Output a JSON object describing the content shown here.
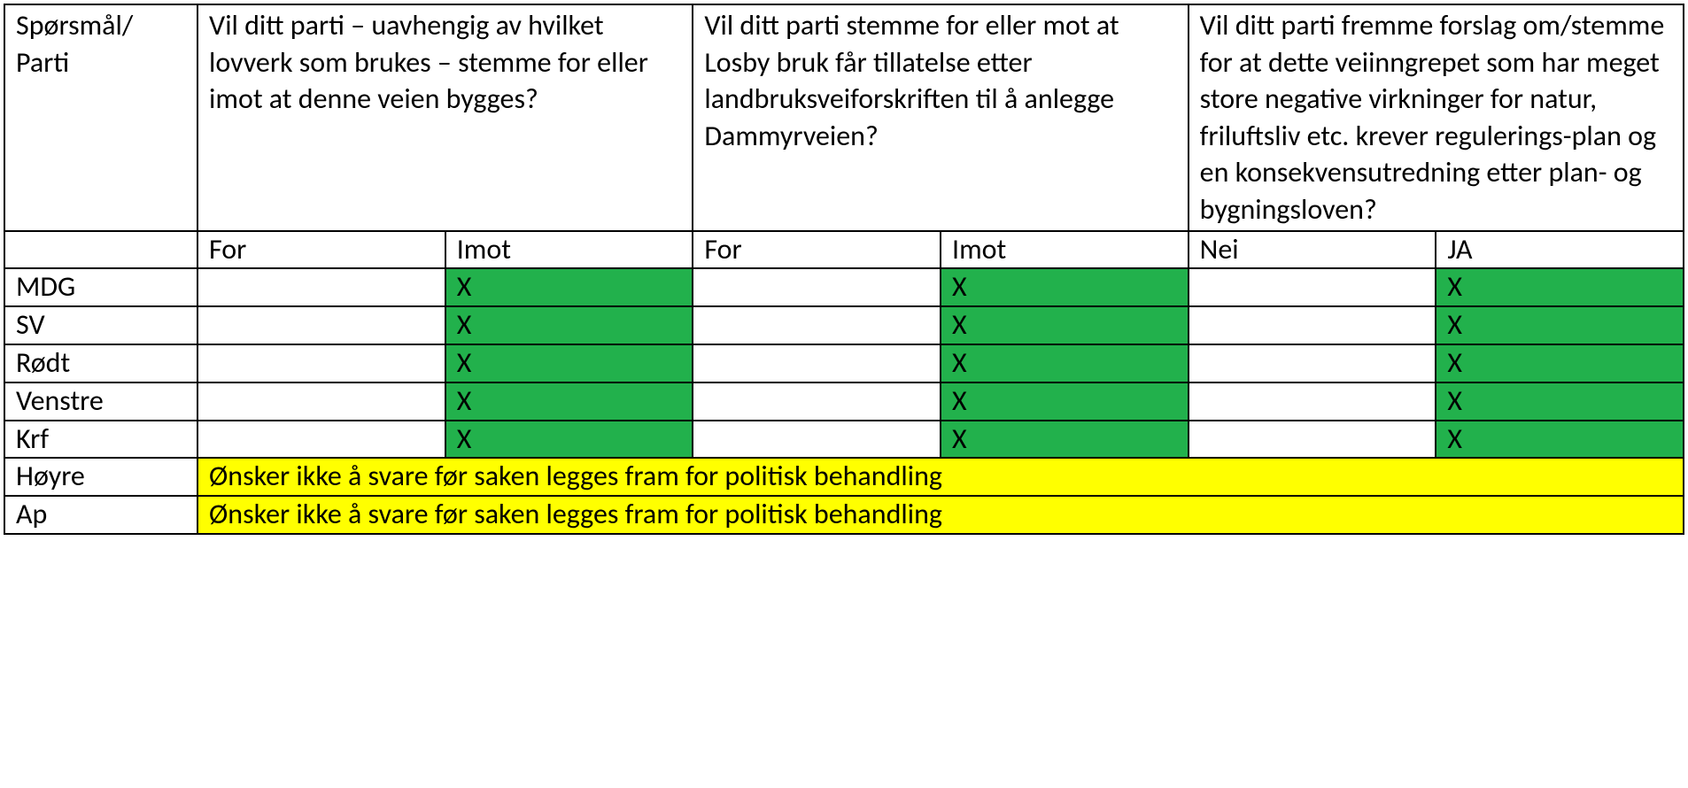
{
  "colors": {
    "green": "#22b14c",
    "yellow": "#ffff00",
    "border": "#000000",
    "background": "#ffffff",
    "text": "#000000"
  },
  "typography": {
    "font_family": "Calibri",
    "font_size_pt": 24
  },
  "table": {
    "header": {
      "col0": "Spørsmål/ Parti",
      "q1": "Vil ditt parti – uavhengig av hvilket lovverk som brukes – stemme for eller imot at denne veien bygges?",
      "q2": "Vil ditt parti stemme for eller mot at Losby bruk får tillatelse etter landbruksveiforskriften til å anlegge Dammyrveien?",
      "q3": "Vil ditt parti fremme forslag om/stemme for at dette veiinngrepet som har meget store negative virkninger for natur, friluftsliv etc. krever regulerings-plan og en konsekvensutredning etter plan- og bygningsloven?"
    },
    "subheaders": {
      "q1a": "For",
      "q1b": "Imot",
      "q2a": "For",
      "q2b": "Imot",
      "q3a": "Nei",
      "q3b": "JA"
    },
    "parties": [
      {
        "name": "MDG",
        "cells": [
          {
            "value": "",
            "color": "none"
          },
          {
            "value": "X",
            "color": "green"
          },
          {
            "value": "",
            "color": "none"
          },
          {
            "value": "X",
            "color": "green"
          },
          {
            "value": "",
            "color": "none"
          },
          {
            "value": "X",
            "color": "green"
          }
        ]
      },
      {
        "name": "SV",
        "cells": [
          {
            "value": "",
            "color": "none"
          },
          {
            "value": "X",
            "color": "green"
          },
          {
            "value": "",
            "color": "none"
          },
          {
            "value": "X",
            "color": "green"
          },
          {
            "value": "",
            "color": "none"
          },
          {
            "value": "X",
            "color": "green"
          }
        ]
      },
      {
        "name": "Rødt",
        "cells": [
          {
            "value": "",
            "color": "none"
          },
          {
            "value": "X",
            "color": "green"
          },
          {
            "value": "",
            "color": "none"
          },
          {
            "value": "X",
            "color": "green"
          },
          {
            "value": "",
            "color": "none"
          },
          {
            "value": "X",
            "color": "green"
          }
        ]
      },
      {
        "name": "Venstre",
        "cells": [
          {
            "value": "",
            "color": "none"
          },
          {
            "value": "X",
            "color": "green"
          },
          {
            "value": "",
            "color": "none"
          },
          {
            "value": "X",
            "color": "green"
          },
          {
            "value": "",
            "color": "none"
          },
          {
            "value": "X",
            "color": "green"
          }
        ]
      },
      {
        "name": "Krf",
        "cells": [
          {
            "value": "",
            "color": "none"
          },
          {
            "value": "X",
            "color": "green"
          },
          {
            "value": "",
            "color": "none"
          },
          {
            "value": "X",
            "color": "green"
          },
          {
            "value": "",
            "color": "none"
          },
          {
            "value": "X",
            "color": "green"
          }
        ]
      }
    ],
    "merged_rows": [
      {
        "name": "Høyre",
        "text": "Ønsker ikke å svare før saken legges fram for politisk behandling",
        "color": "yellow"
      },
      {
        "name": "Ap",
        "text": "Ønsker ikke å svare før saken legges fram for politisk behandling",
        "color": "yellow"
      }
    ]
  }
}
